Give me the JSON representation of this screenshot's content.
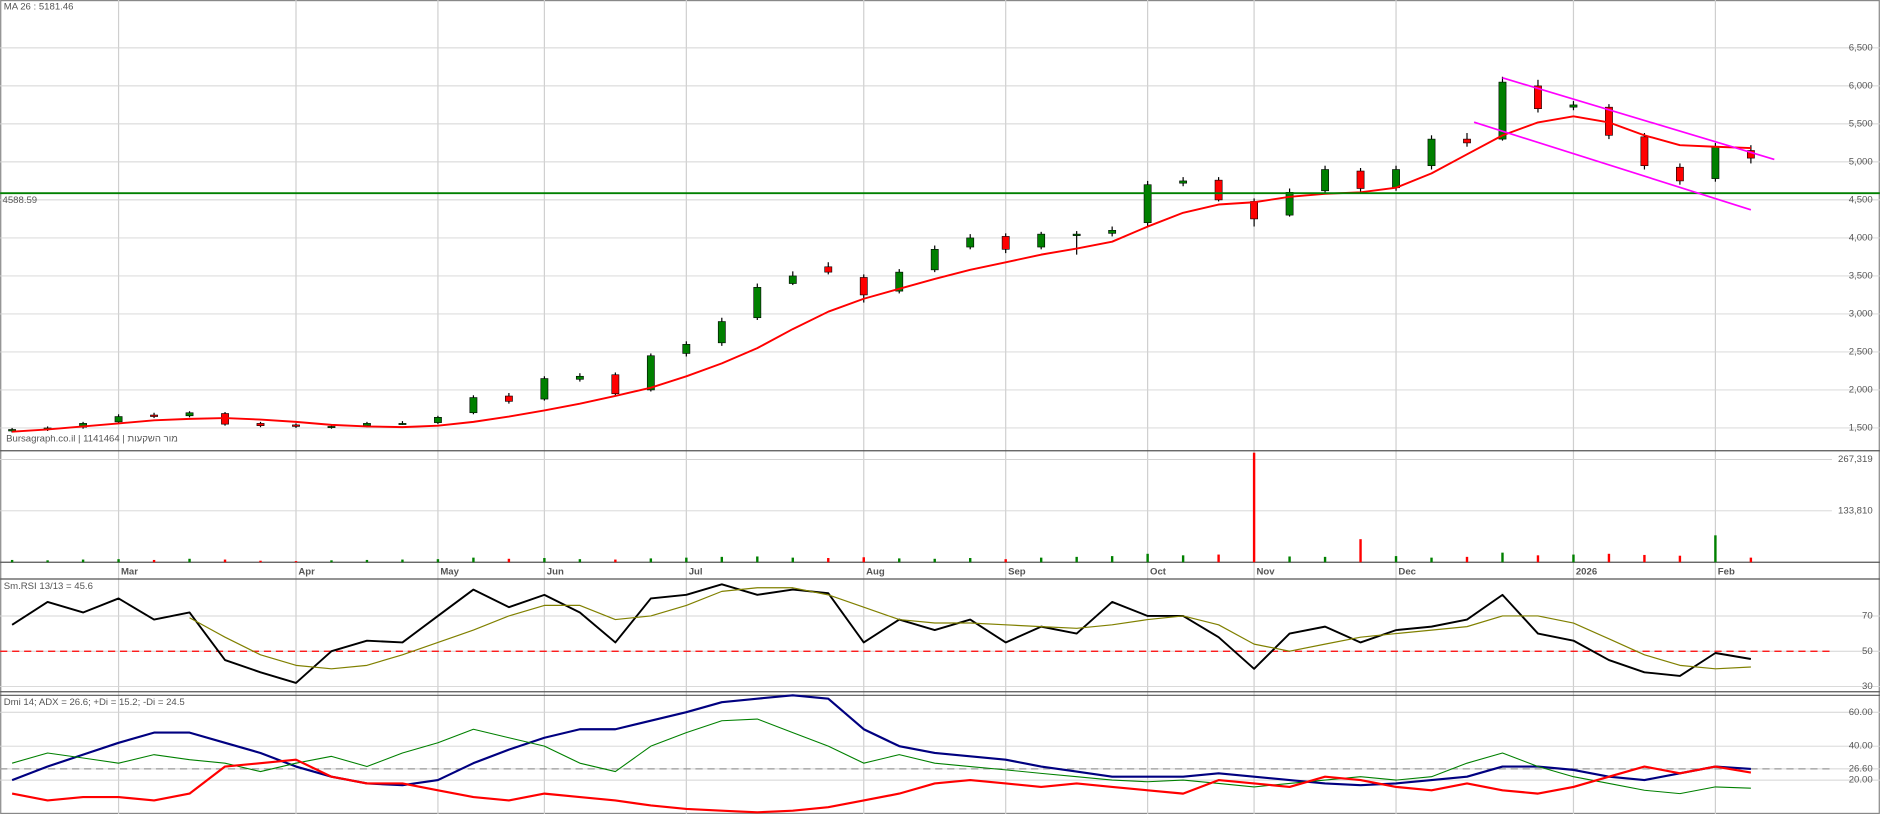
{
  "chart_data": [
    {
      "type": "candlestick",
      "title": "MA 26 : 5181.46",
      "title_color": "#ff0000",
      "open": [
        1460,
        1480,
        1510,
        1580,
        1670,
        1660,
        1690,
        1560,
        1540,
        1510,
        1530,
        1560,
        1570,
        1700,
        1920,
        1880,
        2140,
        2200,
        2000,
        2480,
        2620,
        2950,
        3400,
        3620,
        3480,
        3300,
        3580,
        3880,
        4020,
        3880,
        4030,
        4060,
        4200,
        4720,
        4760,
        4480,
        4300,
        4620,
        4880,
        4660,
        4950,
        5300,
        5300,
        6000,
        5720,
        5720,
        5330,
        4930,
        4780,
        5150
      ],
      "high": [
        1500,
        1520,
        1580,
        1680,
        1700,
        1720,
        1710,
        1580,
        1560,
        1540,
        1580,
        1590,
        1660,
        1930,
        1960,
        2180,
        2220,
        2230,
        2480,
        2640,
        2950,
        3400,
        3560,
        3680,
        3520,
        3590,
        3900,
        4050,
        4060,
        4080,
        4090,
        4150,
        4750,
        4800,
        4800,
        4520,
        4650,
        4950,
        4920,
        4950,
        5350,
        5380,
        6120,
        6080,
        5800,
        5760,
        5380,
        4980,
        5250,
        5220
      ],
      "low": [
        1440,
        1460,
        1490,
        1560,
        1630,
        1640,
        1530,
        1510,
        1500,
        1490,
        1510,
        1540,
        1550,
        1680,
        1820,
        1860,
        2110,
        1920,
        1980,
        2440,
        2580,
        2920,
        3380,
        3520,
        3150,
        3270,
        3550,
        3850,
        3800,
        3850,
        3780,
        4020,
        4150,
        4680,
        4480,
        4150,
        4280,
        4580,
        4600,
        4620,
        4900,
        5200,
        5280,
        5650,
        5680,
        5300,
        4900,
        4700,
        4740,
        4980
      ],
      "close": [
        1480,
        1500,
        1560,
        1650,
        1650,
        1700,
        1550,
        1530,
        1520,
        1520,
        1560,
        1560,
        1640,
        1900,
        1850,
        2150,
        2180,
        1950,
        2450,
        2600,
        2900,
        3350,
        3500,
        3550,
        3250,
        3550,
        3850,
        4000,
        3850,
        4050,
        4050,
        4100,
        4700,
        4750,
        4500,
        4250,
        4600,
        4900,
        4650,
        4900,
        5300,
        5250,
        6050,
        5700,
        5750,
        5350,
        4950,
        4750,
        5200,
        5050
      ],
      "up_color": "#008000",
      "down_color": "#ff0000",
      "series": [
        {
          "color": "#ff0000",
          "values": [
            1450,
            1480,
            1520,
            1560,
            1600,
            1620,
            1630,
            1610,
            1580,
            1540,
            1520,
            1510,
            1530,
            1580,
            1650,
            1730,
            1820,
            1920,
            2030,
            2180,
            2350,
            2550,
            2800,
            3030,
            3200,
            3330,
            3460,
            3580,
            3680,
            3780,
            3860,
            3950,
            4150,
            4330,
            4440,
            4470,
            4540,
            4580,
            4600,
            4660,
            4850,
            5100,
            5350,
            5520,
            5600,
            5520,
            5350,
            5220,
            5200,
            5181.46
          ]
        }
      ],
      "hline": {
        "value": 4588.59,
        "color": "#008000"
      },
      "trendlines": [
        {
          "color": "#ff00ff",
          "x": [
            42,
            49.66
          ],
          "y": [
            6106,
            5033
          ]
        },
        {
          "color": "#ff00ff",
          "x": [
            41.2,
            49
          ],
          "y": [
            5522,
            4370
          ]
        }
      ],
      "annotation": "Bursagraph.co.il | 1141464 | מור השקעות",
      "ylim": [
        1200,
        7130
      ],
      "yticks": [
        {
          "value": 1500,
          "label": "1,500"
        },
        {
          "value": 2000,
          "label": "2,000"
        },
        {
          "value": 2500,
          "label": "2,500"
        },
        {
          "value": 3000,
          "label": "3,000"
        },
        {
          "value": 3500,
          "label": "3,500"
        },
        {
          "value": 4000,
          "label": "4,000"
        },
        {
          "value": 4500,
          "label": "4,500"
        },
        {
          "value": 5000,
          "label": "5,000"
        },
        {
          "value": 5500,
          "label": "5,500"
        },
        {
          "value": 6000,
          "label": "6,000"
        },
        {
          "value": 6500,
          "label": "6,500"
        }
      ],
      "grid": true
    },
    {
      "type": "bar",
      "categories": [
        null,
        null,
        null,
        "Mar",
        null,
        null,
        null,
        null,
        "Apr",
        null,
        null,
        null,
        "May",
        null,
        null,
        "Jun",
        null,
        null,
        null,
        "Jul",
        null,
        null,
        null,
        null,
        "Aug",
        null,
        null,
        null,
        "Sep",
        null,
        null,
        null,
        "Oct",
        null,
        null,
        "Nov",
        null,
        null,
        null,
        "Dec",
        null,
        null,
        null,
        null,
        "2026",
        null,
        null,
        null,
        "Feb",
        null
      ],
      "values": [
        6000,
        5000,
        7000,
        8000,
        6000,
        9000,
        7000,
        4000,
        3000,
        5000,
        6000,
        7000,
        8000,
        12000,
        9000,
        11000,
        8000,
        7000,
        10000,
        12000,
        14000,
        15000,
        12000,
        11000,
        13000,
        10000,
        9000,
        11000,
        8000,
        12000,
        14000,
        16000,
        22000,
        18000,
        20000,
        285000,
        15000,
        14000,
        60000,
        16000,
        12000,
        14000,
        25000,
        18000,
        20000,
        22000,
        19000,
        17000,
        70000,
        12000
      ],
      "ylim": [
        0,
        290000
      ],
      "yticks": [
        {
          "value": 133810,
          "label": "133,810"
        },
        {
          "value": 267319,
          "label": "267,319"
        }
      ]
    },
    {
      "type": "line",
      "title": "Sm.RSI 13/13 = 45.6",
      "title_color": "#333333",
      "series": [
        {
          "color": "#000000",
          "width": 1.6,
          "values": [
            65,
            78,
            72,
            80,
            68,
            72,
            45,
            38,
            32,
            50,
            56,
            55,
            70,
            85,
            75,
            82,
            72,
            55,
            80,
            82,
            88,
            82,
            85,
            83,
            55,
            68,
            62,
            68,
            55,
            64,
            60,
            78,
            70,
            70,
            58,
            40,
            60,
            64,
            55,
            62,
            64,
            68,
            82,
            60,
            56,
            45,
            38,
            36,
            49,
            45.6
          ]
        },
        {
          "color": "#808000",
          "width": 1,
          "values": [
            null,
            null,
            null,
            null,
            null,
            69,
            58,
            48,
            42,
            40,
            42,
            48,
            55,
            62,
            70,
            76,
            76,
            68,
            70,
            76,
            84,
            86,
            86,
            82,
            75,
            68,
            66,
            66,
            65,
            64,
            63,
            65,
            68,
            70,
            65,
            54,
            50,
            54,
            58,
            60,
            62,
            64,
            70,
            70,
            66,
            57,
            48,
            42,
            40,
            41
          ]
        }
      ],
      "ref_line": {
        "value": 50,
        "color": "#ff0000",
        "dash": true
      },
      "ylim": [
        27,
        91
      ],
      "yticks": [
        30,
        50,
        70
      ],
      "grid": true
    },
    {
      "type": "line",
      "title": "Dmi 14; ADX = 26.6; +Di = 15.2; -Di = 24.5",
      "title_color": "#333333",
      "series": [
        {
          "color": "#000080",
          "width": 1.8,
          "values": [
            20,
            28,
            35,
            42,
            48,
            48,
            42,
            36,
            28,
            22,
            18,
            17,
            20,
            30,
            38,
            45,
            50,
            50,
            55,
            60,
            66,
            68,
            70,
            68,
            50,
            40,
            36,
            34,
            32,
            28,
            25,
            22,
            22,
            22,
            24,
            22,
            20,
            18,
            17,
            18,
            20,
            22,
            28,
            28,
            26,
            22,
            20,
            24,
            28,
            26.6
          ]
        },
        {
          "color": "#008000",
          "width": 0.9,
          "values": [
            30,
            36,
            33,
            30,
            35,
            32,
            30,
            25,
            30,
            34,
            28,
            36,
            42,
            50,
            45,
            40,
            30,
            25,
            40,
            48,
            55,
            56,
            48,
            40,
            30,
            35,
            30,
            28,
            26,
            24,
            22,
            20,
            19,
            20,
            18,
            16,
            18,
            20,
            22,
            20,
            22,
            30,
            36,
            28,
            22,
            18,
            14,
            12,
            16,
            15.2
          ]
        },
        {
          "color": "#ff0000",
          "width": 1.8,
          "values": [
            12,
            8,
            10,
            10,
            8,
            12,
            28,
            30,
            32,
            22,
            18,
            18,
            14,
            10,
            8,
            12,
            10,
            8,
            5,
            3,
            2,
            1,
            2,
            4,
            8,
            12,
            18,
            20,
            18,
            16,
            18,
            16,
            14,
            12,
            20,
            18,
            16,
            22,
            20,
            16,
            14,
            18,
            14,
            12,
            16,
            22,
            28,
            24,
            28,
            24.5
          ]
        }
      ],
      "ref_line": {
        "value": 26.6,
        "color": "#999999",
        "dash": true
      },
      "ylim": [
        0,
        70
      ],
      "yticks": [
        {
          "value": 20,
          "label": "20.00"
        },
        {
          "value": 26.6,
          "label": "26.60"
        },
        {
          "value": 40,
          "label": "40.00"
        },
        {
          "value": 60,
          "label": "60.00"
        }
      ],
      "grid": true
    }
  ]
}
